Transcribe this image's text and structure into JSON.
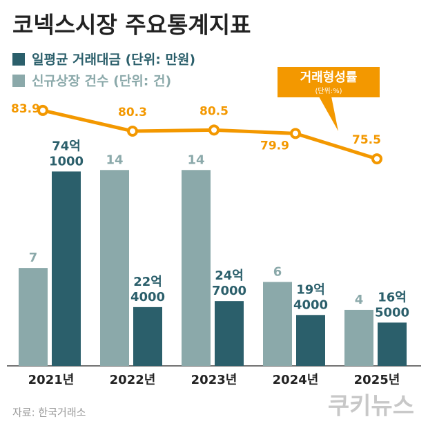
{
  "title": "코넥스시장 주요통계지표",
  "source": "자료: 한국거래소",
  "watermark": "쿠키뉴스",
  "chart_data": [
    {
      "type": "bar",
      "categories": [
        "2021년",
        "2022년",
        "2023년",
        "2024년",
        "2025년"
      ],
      "ylim": [
        0,
        15
      ],
      "y2lim": [
        0,
        800000
      ],
      "series": [
        {
          "name": "일평균 거래대금 (단위: 만원)",
          "color": "#2b5f6b",
          "axis": "y2",
          "values": [
            741000,
            224000,
            247000,
            194000,
            165000
          ],
          "value_labels": [
            [
              "74억",
              "1000"
            ],
            [
              "22억",
              "4000"
            ],
            [
              "24억",
              "7000"
            ],
            [
              "19억",
              "4000"
            ],
            [
              "16억",
              "5000"
            ]
          ]
        },
        {
          "name": "신규상장 건수 (단위: 건)",
          "color": "#8ba9aa",
          "values": [
            7,
            14,
            14,
            6,
            4
          ]
        }
      ]
    },
    {
      "type": "line",
      "name": "거래형성률",
      "unit_label": "(단위:%)",
      "color": "#f39800",
      "ylim": [
        70,
        90
      ],
      "values": [
        83.9,
        80.3,
        80.5,
        79.9,
        75.5
      ]
    }
  ]
}
